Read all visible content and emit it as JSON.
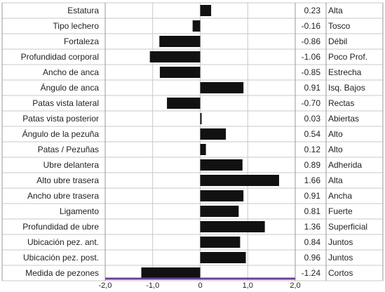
{
  "chart_data": {
    "type": "bar",
    "orientation": "horizontal",
    "title": "",
    "xlabel": "",
    "ylabel": "",
    "xlim": [
      -2.0,
      2.0
    ],
    "x_ticks": [
      "-2,0",
      "-1,0",
      "0",
      "1,0",
      "2,0"
    ],
    "grid": true,
    "legend": "none",
    "categories": [
      "Estatura",
      "Tipo lechero",
      "Fortaleza",
      "Profundidad corporal",
      "Ancho de anca",
      "Ángulo de anca",
      "Patas vista lateral",
      "Patas vista posterior",
      "Ángulo de la pezuña",
      "Patas / Pezuñas",
      "Ubre delantera",
      "Alto ubre trasera",
      "Ancho ubre trasera",
      "Ligamento",
      "Profundidad de ubre",
      "Ubicación pez. ant.",
      "Ubicación pez. post.",
      "Medida de pezones"
    ],
    "values": [
      0.23,
      -0.16,
      -0.86,
      -1.06,
      -0.85,
      0.91,
      -0.7,
      0.03,
      0.54,
      0.12,
      0.89,
      1.66,
      0.91,
      0.81,
      1.36,
      0.84,
      0.96,
      -1.24
    ],
    "value_labels": [
      "0.23",
      "-0.16",
      "-0.86",
      "-1.06",
      "-0.85",
      "0.91",
      "-0.70",
      "0.03",
      "0.54",
      "0.12",
      "0.89",
      "1.66",
      "0.91",
      "0.81",
      "1.36",
      "0.84",
      "0.96",
      "-1.24"
    ],
    "descriptors": [
      "Alta",
      "Tosco",
      "Débil",
      "Poco Prof.",
      "Estrecha",
      "Isq. Bajos",
      "Rectas",
      "Abiertas",
      "Alto",
      "Alto",
      "Adherida",
      "Alta",
      "Ancha",
      "Fuerte",
      "Superficial",
      "Juntos",
      "Juntos",
      "Cortos"
    ],
    "colors": {
      "bar": "#111111",
      "grid": "#c8c8c8",
      "axis": "#6a3fa0",
      "border": "#9a9a9a"
    }
  }
}
